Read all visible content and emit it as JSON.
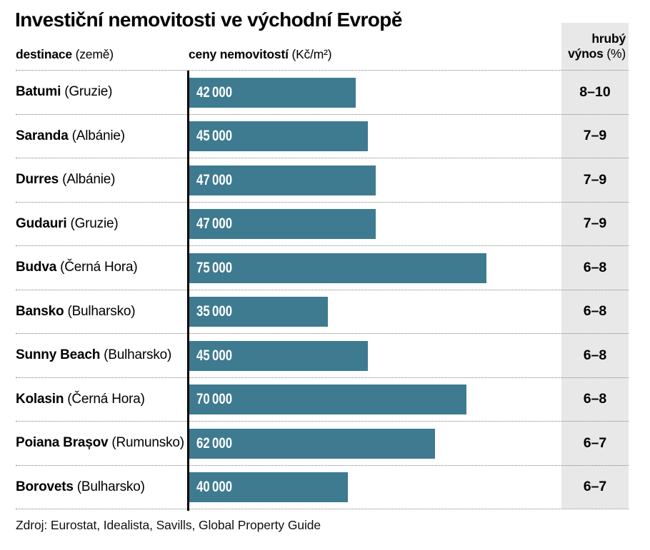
{
  "title": "Investiční nemovitosti ve východní Evropě",
  "header": {
    "destination_bold": "destinace",
    "destination_note": "(země)",
    "price_bold": "ceny nemovitostí",
    "price_note": "(Kč/m²)",
    "yield_line1": "hrubý",
    "yield_line2_bold": "výnos",
    "yield_line2_note": "(%)"
  },
  "source": "Zdroj: Eurostat, Idealista, Savills, Global Property Guide",
  "colors": {
    "bar": "#3e7a90",
    "band": "#e8e8e8",
    "bar_label_text": "#ffffff"
  },
  "rows": [
    {
      "city": "Batumi",
      "country": "(Gruzie)",
      "value": 42000,
      "value_label": "42 000",
      "yield": "8–10"
    },
    {
      "city": "Saranda",
      "country": "(Albánie)",
      "value": 45000,
      "value_label": "45 000",
      "yield": "7–9"
    },
    {
      "city": "Durres",
      "country": "(Albánie)",
      "value": 47000,
      "value_label": "47 000",
      "yield": "7–9"
    },
    {
      "city": "Gudauri",
      "country": "(Gruzie)",
      "value": 47000,
      "value_label": "47 000",
      "yield": "7–9"
    },
    {
      "city": "Budva",
      "country": "(Černá Hora)",
      "value": 75000,
      "value_label": "75 000",
      "yield": "6–8"
    },
    {
      "city": "Bansko",
      "country": "(Bulharsko)",
      "value": 35000,
      "value_label": "35 000",
      "yield": "6–8"
    },
    {
      "city": "Sunny Beach",
      "country": "(Bulharsko)",
      "value": 45000,
      "value_label": "45 000",
      "yield": "6–8"
    },
    {
      "city": "Kolasin",
      "country": "(Černá Hora)",
      "value": 70000,
      "value_label": "70 000",
      "yield": "6–8"
    },
    {
      "city": "Poiana Brașov",
      "country": "(Rumunsko)",
      "value": 62000,
      "value_label": "62 000",
      "yield": "6–7"
    },
    {
      "city": "Borovets",
      "country": "(Bulharsko)",
      "value": 40000,
      "value_label": "40 000",
      "yield": "6–7"
    }
  ],
  "chart_data": {
    "type": "bar",
    "orientation": "horizontal",
    "title": "Investiční nemovitosti ve východní Evropě",
    "value_axis_label": "ceny nemovitostí (Kč/m²)",
    "category_axis_label": "destinace (země)",
    "secondary_column_label": "hrubý výnos (%)",
    "categories": [
      "Batumi (Gruzie)",
      "Saranda (Albánie)",
      "Durres (Albánie)",
      "Gudauri (Gruzie)",
      "Budva (Černá Hora)",
      "Bansko (Bulharsko)",
      "Sunny Beach (Bulharsko)",
      "Kolasin (Černá Hora)",
      "Poiana Brașov (Rumunsko)",
      "Borovets (Bulharsko)"
    ],
    "values": [
      42000,
      45000,
      47000,
      47000,
      75000,
      35000,
      45000,
      70000,
      62000,
      40000
    ],
    "value_labels": [
      "42 000",
      "45 000",
      "47 000",
      "47 000",
      "75 000",
      "35 000",
      "45 000",
      "70 000",
      "62 000",
      "40 000"
    ],
    "gross_yield_pct": [
      "8–10",
      "7–9",
      "7–9",
      "7–9",
      "6–8",
      "6–8",
      "6–8",
      "6–8",
      "6–7",
      "6–7"
    ],
    "xlim": [
      0,
      75000
    ],
    "grid": false,
    "legend": false,
    "bar_color": "#3e7a90",
    "source": "Zdroj: Eurostat, Idealista, Savills, Global Property Guide"
  }
}
